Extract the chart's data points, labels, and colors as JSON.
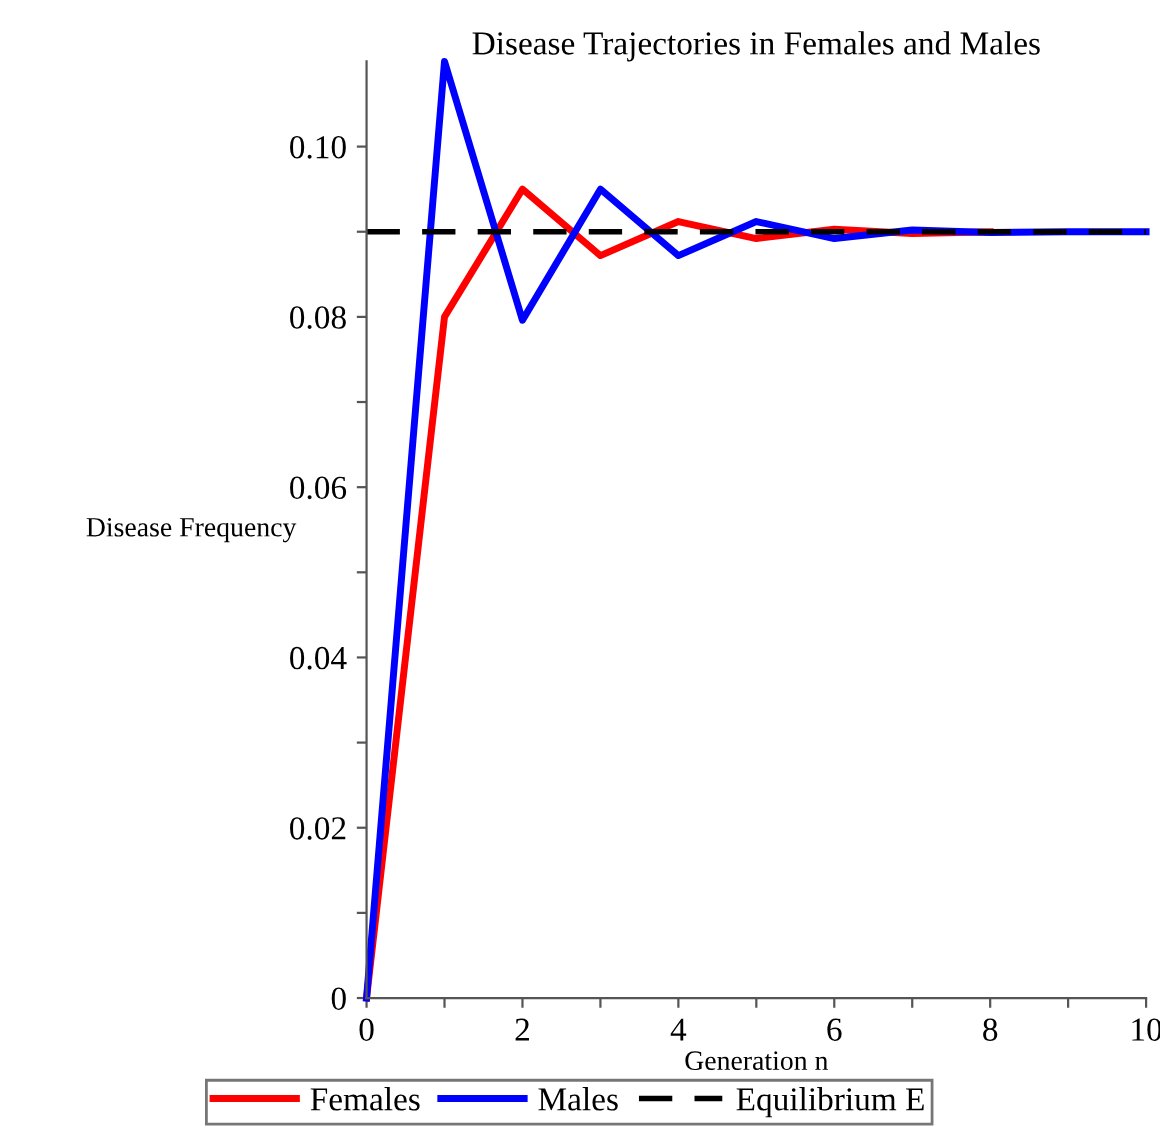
{
  "chart_data": {
    "type": "line",
    "title": "Disease Trajectories in Females and Males",
    "xlabel": "Generation n",
    "ylabel": "Disease Frequency",
    "x": [
      0,
      1,
      2,
      3,
      4,
      5,
      6,
      7,
      8,
      9,
      10
    ],
    "series": [
      {
        "name": "Females",
        "color": "#ff0000",
        "values": [
          0,
          0.08,
          0.095,
          0.0872,
          0.0912,
          0.0892,
          0.0903,
          0.0898,
          0.09,
          null,
          null
        ]
      },
      {
        "name": "Males",
        "color": "#0000ff",
        "values": [
          0,
          0.11,
          0.0796,
          0.095,
          0.0872,
          0.0912,
          0.0892,
          0.0902,
          0.0899,
          0.09,
          0.09
        ]
      }
    ],
    "ref_lines": [
      {
        "axis": "y",
        "value": 0.09,
        "label": "Equilibrium E",
        "color": "#000000",
        "line_style": "dashed"
      }
    ],
    "xlim": [
      0,
      10
    ],
    "ylim": [
      0,
      0.11
    ],
    "xticks": [
      0,
      {
        "value": 1,
        "label": null
      },
      2,
      {
        "value": 3,
        "label": null
      },
      4,
      {
        "value": 5,
        "label": null
      },
      6,
      {
        "value": 7,
        "label": null
      },
      8,
      {
        "value": 9,
        "label": null
      },
      10
    ],
    "yticks": [
      {
        "value": 0,
        "label": "0"
      },
      {
        "value": 0.01,
        "label": null
      },
      0.02,
      {
        "value": 0.03,
        "label": null
      },
      0.04,
      {
        "value": 0.05,
        "label": null
      },
      0.06,
      {
        "value": 0.07,
        "label": null
      },
      0.08,
      {
        "value": 0.09,
        "label": null
      },
      {
        "value": 0.1,
        "label": "0.10"
      }
    ],
    "grid": false,
    "legend": "bottom",
    "marker": "none",
    "line_style": "solid"
  }
}
